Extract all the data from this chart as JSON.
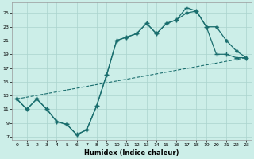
{
  "xlabel": "Humidex (Indice chaleur)",
  "bg_color": "#cceee8",
  "grid_color": "#aad4ce",
  "line_color": "#1a6e6e",
  "xlim": [
    -0.5,
    23.5
  ],
  "ylim": [
    6.5,
    26.5
  ],
  "xticks": [
    0,
    1,
    2,
    3,
    4,
    5,
    6,
    7,
    8,
    9,
    10,
    11,
    12,
    13,
    14,
    15,
    16,
    17,
    18,
    19,
    20,
    21,
    22,
    23
  ],
  "yticks": [
    7,
    9,
    11,
    13,
    15,
    17,
    19,
    21,
    23,
    25
  ],
  "line1_x": [
    0,
    1,
    2,
    3,
    4,
    5,
    6,
    7,
    8,
    9,
    10,
    11,
    12,
    13,
    14,
    15,
    16,
    17,
    18,
    19,
    20,
    21,
    22,
    23
  ],
  "line1_y": [
    12.5,
    11.0,
    12.5,
    11.0,
    9.2,
    8.8,
    7.3,
    8.0,
    11.5,
    16.0,
    21.0,
    21.5,
    22.0,
    23.5,
    22.0,
    23.5,
    24.0,
    25.8,
    25.3,
    23.0,
    19.0,
    19.0,
    18.5,
    18.5
  ],
  "line2_x": [
    0,
    1,
    2,
    3,
    4,
    5,
    6,
    7,
    8,
    9,
    10,
    11,
    12,
    13,
    14,
    15,
    16,
    17,
    18,
    19,
    20,
    21,
    22,
    23
  ],
  "line2_y": [
    12.5,
    11.0,
    12.5,
    11.0,
    9.2,
    8.8,
    7.3,
    8.0,
    11.5,
    16.0,
    21.0,
    21.5,
    22.0,
    23.5,
    22.0,
    23.5,
    24.0,
    25.0,
    25.3,
    23.0,
    23.0,
    21.0,
    19.5,
    18.5
  ],
  "line3_x": [
    0,
    23
  ],
  "line3_y": [
    12.5,
    18.5
  ]
}
